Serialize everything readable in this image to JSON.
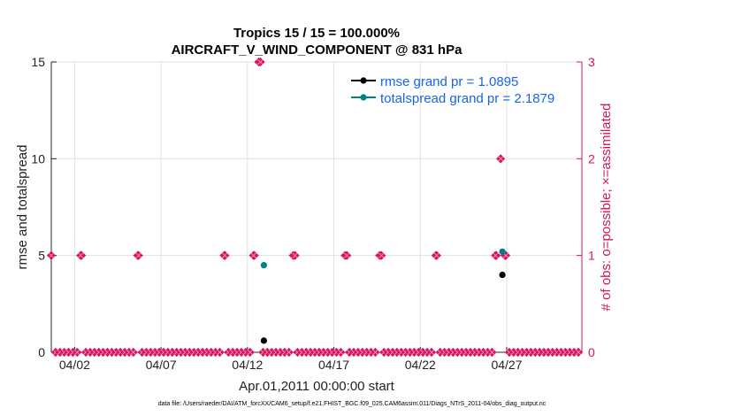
{
  "chart_data": {
    "type": "scatter",
    "title_line1": "Tropics 15 / 15 = 100.000%",
    "title_line2": "AIRCRAFT_V_WIND_COMPONENT @ 831 hPa",
    "xlabel": "Apr.01,2011 00:00:00 start",
    "ylabel_left": "rmse and totalspread",
    "ylabel_right": "# of obs: o=possible; ×=assimilated",
    "footnote": "data file: /Users/raeder/DAI/ATM_forcXX/CAM6_setup/f.e21.FHIST_BGC.f09_025.CAM6assim.011/Diags_NTrS_2011-04/obs_diag_output.nc",
    "xlim": [
      0.65,
      31.35
    ],
    "ylim_left": [
      0,
      15
    ],
    "ylim_right": [
      0,
      3
    ],
    "x_ticks": [
      {
        "x": 2,
        "label": "04/02"
      },
      {
        "x": 7,
        "label": "04/07"
      },
      {
        "x": 12,
        "label": "04/12"
      },
      {
        "x": 17,
        "label": "04/17"
      },
      {
        "x": 22,
        "label": "04/22"
      },
      {
        "x": 27,
        "label": "04/27"
      }
    ],
    "y_ticks_left": [
      0,
      5,
      10,
      15
    ],
    "y_ticks_right": [
      0,
      1,
      2,
      3
    ],
    "colors": {
      "rmse": "#000000",
      "totalspread": "#008080",
      "obs": "#d6145f",
      "legend_text": "#1565e8",
      "grid": "#e1e1e1"
    },
    "legend": [
      {
        "label": "rmse grand pr = 1.0895",
        "key": "rmse"
      },
      {
        "label": "totalspread grand pr = 2.1879",
        "key": "totalspread"
      }
    ],
    "series": [
      {
        "name": "rmse",
        "axis": "left",
        "x": [
          12.95,
          26.75
        ],
        "values": [
          0.6,
          4.0
        ]
      },
      {
        "name": "totalspread",
        "axis": "left",
        "x": [
          12.95,
          26.75
        ],
        "values": [
          4.5,
          5.2
        ]
      }
    ],
    "obs_count_nonzero": [
      {
        "x": 0.65,
        "count": 1
      },
      {
        "x": 2.35,
        "count": 1
      },
      {
        "x": 5.7,
        "count": 1
      },
      {
        "x": 10.7,
        "count": 1
      },
      {
        "x": 12.35,
        "count": 1
      },
      {
        "x": 12.75,
        "count": 3
      },
      {
        "x": 14.75,
        "count": 1
      },
      {
        "x": 17.75,
        "count": 1
      },
      {
        "x": 19.75,
        "count": 1
      },
      {
        "x": 22.95,
        "count": 1
      },
      {
        "x": 26.35,
        "count": 1
      },
      {
        "x": 26.65,
        "count": 2
      },
      {
        "x": 26.95,
        "count": 1
      }
    ],
    "obs_bin_width_days": 0.25
  }
}
